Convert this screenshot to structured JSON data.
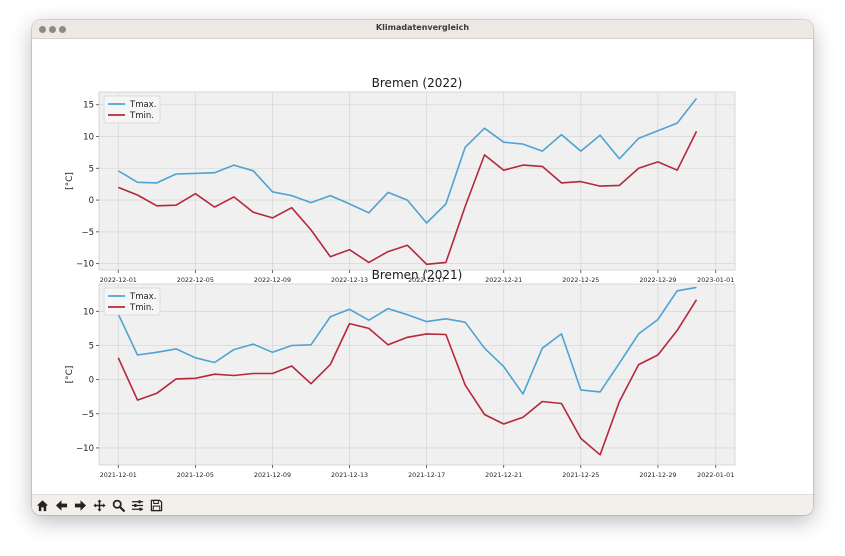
{
  "window": {
    "title": "Klimadatenvergleich"
  },
  "toolbar": {
    "buttons": [
      {
        "name": "home-button",
        "icon": "home-icon"
      },
      {
        "name": "back-button",
        "icon": "arrow-left-icon"
      },
      {
        "name": "forward-button",
        "icon": "arrow-right-icon"
      },
      {
        "name": "pan-button",
        "icon": "move-icon"
      },
      {
        "name": "zoom-button",
        "icon": "magnifier-icon"
      },
      {
        "name": "configure-subplots-button",
        "icon": "sliders-icon"
      },
      {
        "name": "save-button",
        "icon": "floppy-disk-icon"
      }
    ]
  },
  "colors": {
    "tmax": "#4ea3d1",
    "tmin": "#b5283a",
    "plot_bg": "#f0f0f0",
    "grid": "#d8d8d8"
  },
  "chart_data": [
    {
      "type": "line",
      "title": "Bremen (2022)",
      "ylabel": "[°C]",
      "xlabel": "",
      "x_start": "2022-12-01",
      "xlim": [
        "2022-11-30",
        "2023-01-02"
      ],
      "ylim": [
        -11,
        17
      ],
      "xticks": [
        "2022-12-01",
        "2022-12-05",
        "2022-12-09",
        "2022-12-13",
        "2022-12-17",
        "2022-12-21",
        "2022-12-25",
        "2022-12-29",
        "2023-01-01"
      ],
      "yticks": [
        -10,
        -5,
        0,
        5,
        10,
        15
      ],
      "grid": true,
      "legend": "upper-left",
      "series": [
        {
          "name": "Tmax.",
          "values": [
            4.6,
            2.8,
            2.7,
            4.1,
            4.2,
            4.3,
            5.5,
            4.6,
            1.3,
            0.7,
            -0.4,
            0.7,
            -0.6,
            -2.0,
            1.2,
            0.0,
            -3.6,
            -0.6,
            8.3,
            11.3,
            9.1,
            8.8,
            7.7,
            10.3,
            7.7,
            10.2,
            6.5,
            9.7,
            10.9,
            12.1,
            16.0
          ]
        },
        {
          "name": "Tmin.",
          "values": [
            2.0,
            0.8,
            -0.9,
            -0.8,
            1.0,
            -1.1,
            0.5,
            -1.9,
            -2.8,
            -1.2,
            -4.7,
            -8.9,
            -7.8,
            -9.8,
            -8.1,
            -7.1,
            -10.1,
            -9.8,
            -1.0,
            7.1,
            4.7,
            5.5,
            5.3,
            2.7,
            2.9,
            2.2,
            2.3,
            5.0,
            6.0,
            4.7,
            10.8
          ]
        }
      ]
    },
    {
      "type": "line",
      "title": "Bremen (2021)",
      "ylabel": "[°C]",
      "xlabel": "",
      "x_start": "2021-12-01",
      "xlim": [
        "2021-11-30",
        "2022-01-02"
      ],
      "ylim": [
        -12.5,
        14
      ],
      "xticks": [
        "2021-12-01",
        "2021-12-05",
        "2021-12-09",
        "2021-12-13",
        "2021-12-17",
        "2021-12-21",
        "2021-12-25",
        "2021-12-29",
        "2022-01-01"
      ],
      "yticks": [
        -10,
        -5,
        0,
        5,
        10
      ],
      "grid": true,
      "legend": "upper-left",
      "series": [
        {
          "name": "Tmax.",
          "values": [
            9.6,
            3.6,
            4.0,
            4.5,
            3.2,
            2.5,
            4.4,
            5.2,
            4.0,
            5.0,
            5.1,
            9.2,
            10.3,
            8.7,
            10.4,
            9.5,
            8.5,
            8.9,
            8.4,
            4.6,
            1.9,
            -2.1,
            4.6,
            6.7,
            -1.5,
            -1.8,
            2.4,
            6.7,
            8.8,
            13.0,
            13.5
          ]
        },
        {
          "name": "Tmin.",
          "values": [
            3.2,
            -3.0,
            -2.0,
            0.1,
            0.2,
            0.8,
            0.6,
            0.9,
            0.9,
            2.0,
            -0.6,
            2.2,
            8.2,
            7.5,
            5.1,
            6.2,
            6.7,
            6.6,
            -0.8,
            -5.1,
            -6.5,
            -5.5,
            -3.2,
            -3.5,
            -8.6,
            -11.0,
            -3.2,
            2.2,
            3.6,
            7.2,
            11.7
          ]
        }
      ]
    }
  ]
}
